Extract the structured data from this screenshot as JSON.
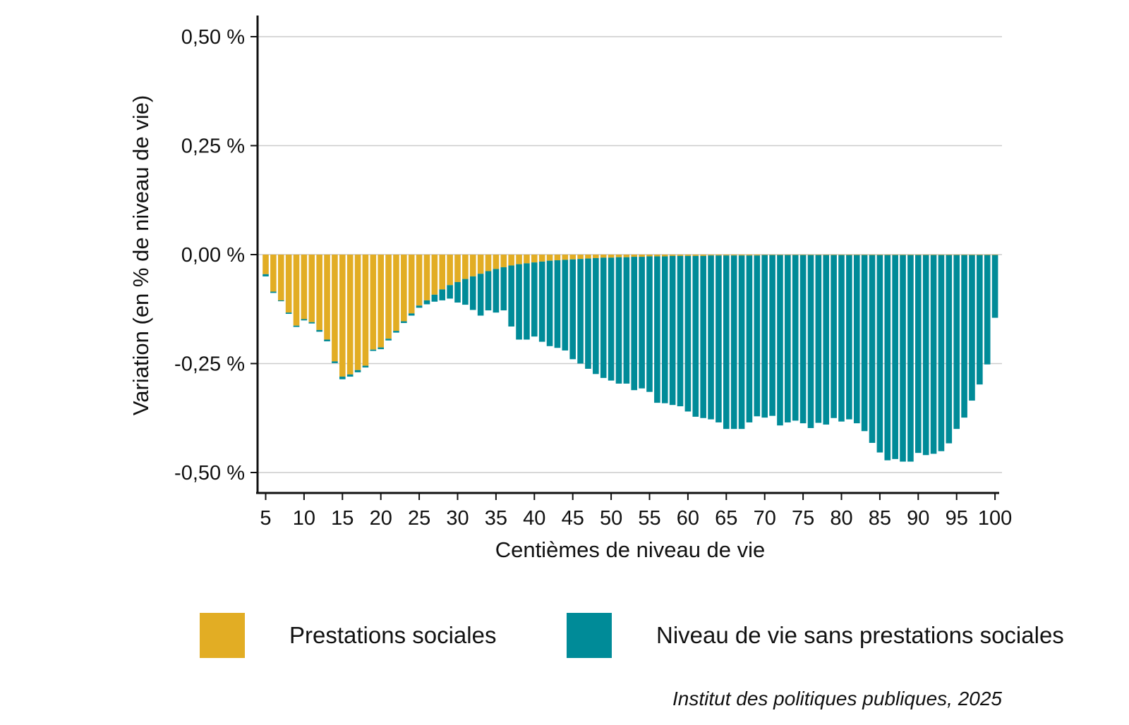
{
  "chart_data": {
    "type": "bar",
    "stacked": true,
    "xlabel": "Centièmes de niveau de vie",
    "ylabel": "Variation (en % de niveau de vie)",
    "caption": "Institut des politiques publiques, 2025",
    "ylim": [
      -0.55,
      0.55
    ],
    "y_ticks": [
      0.5,
      0.25,
      0.0,
      -0.25,
      -0.5
    ],
    "y_tick_labels": [
      "0,50 %",
      "0,25 %",
      "0,00 %",
      "-0,25 %",
      "-0,50 %"
    ],
    "x_ticks": [
      5,
      10,
      15,
      20,
      25,
      30,
      35,
      40,
      45,
      50,
      55,
      60,
      65,
      70,
      75,
      80,
      85,
      90,
      95,
      100
    ],
    "x_tick_labels": [
      "5",
      "10",
      "15",
      "20",
      "25",
      "30",
      "35",
      "40",
      "45",
      "50",
      "55",
      "60",
      "65",
      "70",
      "75",
      "80",
      "85",
      "90",
      "95",
      "100"
    ],
    "grid": true,
    "legend_position": "bottom",
    "colors": {
      "prestations": "#E2AD24",
      "niveau": "#008B98"
    },
    "x": [
      5,
      6,
      7,
      8,
      9,
      10,
      11,
      12,
      13,
      14,
      15,
      16,
      17,
      18,
      19,
      20,
      21,
      22,
      23,
      24,
      25,
      26,
      27,
      28,
      29,
      30,
      31,
      32,
      33,
      34,
      35,
      36,
      37,
      38,
      39,
      40,
      41,
      42,
      43,
      44,
      45,
      46,
      47,
      48,
      49,
      50,
      51,
      52,
      53,
      54,
      55,
      56,
      57,
      58,
      59,
      60,
      61,
      62,
      63,
      64,
      65,
      66,
      67,
      68,
      69,
      70,
      71,
      72,
      73,
      74,
      75,
      76,
      77,
      78,
      79,
      80,
      81,
      82,
      83,
      84,
      85,
      86,
      87,
      88,
      89,
      90,
      91,
      92,
      93,
      94,
      95,
      96,
      97,
      98,
      99,
      100
    ],
    "series": [
      {
        "name": "Prestations sociales",
        "values": [
          -0.045,
          -0.085,
          -0.105,
          -0.133,
          -0.163,
          -0.148,
          -0.155,
          -0.173,
          -0.195,
          -0.245,
          -0.28,
          -0.275,
          -0.265,
          -0.255,
          -0.218,
          -0.213,
          -0.193,
          -0.175,
          -0.153,
          -0.135,
          -0.117,
          -0.105,
          -0.092,
          -0.08,
          -0.07,
          -0.063,
          -0.056,
          -0.05,
          -0.044,
          -0.038,
          -0.033,
          -0.029,
          -0.025,
          -0.022,
          -0.02,
          -0.018,
          -0.016,
          -0.014,
          -0.013,
          -0.012,
          -0.011,
          -0.01,
          -0.009,
          -0.008,
          -0.007,
          -0.007,
          -0.006,
          -0.006,
          -0.005,
          -0.005,
          -0.004,
          -0.004,
          -0.004,
          -0.003,
          -0.003,
          -0.003,
          -0.003,
          -0.003,
          -0.002,
          -0.002,
          -0.002,
          -0.002,
          -0.002,
          -0.002,
          -0.002,
          -0.001,
          -0.001,
          -0.001,
          -0.001,
          -0.001,
          -0.001,
          -0.001,
          -0.001,
          -0.001,
          -0.001,
          -0.001,
          -0.001,
          -0.001,
          -0.001,
          -0.001,
          -0.001,
          -0.001,
          -0.001,
          -0.001,
          -0.001,
          -0.001,
          -0.001,
          -0.001,
          -0.001,
          -0.001,
          -0.001,
          -0.001,
          -0.001,
          -0.001,
          -0.001,
          -0.001
        ]
      },
      {
        "name": "Niveau de vie sans prestations sociales",
        "values": [
          -0.005,
          -0.003,
          -0.002,
          -0.003,
          -0.003,
          -0.003,
          -0.003,
          -0.004,
          -0.004,
          -0.004,
          -0.006,
          -0.005,
          -0.005,
          -0.004,
          -0.003,
          -0.004,
          -0.004,
          -0.004,
          -0.004,
          -0.005,
          -0.005,
          -0.009,
          -0.016,
          -0.025,
          -0.031,
          -0.047,
          -0.059,
          -0.077,
          -0.096,
          -0.09,
          -0.1,
          -0.099,
          -0.14,
          -0.173,
          -0.175,
          -0.17,
          -0.184,
          -0.196,
          -0.201,
          -0.208,
          -0.229,
          -0.24,
          -0.253,
          -0.266,
          -0.276,
          -0.282,
          -0.29,
          -0.29,
          -0.306,
          -0.302,
          -0.311,
          -0.336,
          -0.337,
          -0.342,
          -0.345,
          -0.357,
          -0.369,
          -0.372,
          -0.376,
          -0.383,
          -0.398,
          -0.398,
          -0.398,
          -0.383,
          -0.369,
          -0.373,
          -0.369,
          -0.391,
          -0.384,
          -0.38,
          -0.386,
          -0.397,
          -0.385,
          -0.389,
          -0.374,
          -0.382,
          -0.377,
          -0.386,
          -0.404,
          -0.431,
          -0.453,
          -0.471,
          -0.468,
          -0.474,
          -0.474,
          -0.454,
          -0.459,
          -0.456,
          -0.45,
          -0.432,
          -0.399,
          -0.373,
          -0.334,
          -0.297,
          -0.251,
          -0.144
        ]
      }
    ]
  }
}
